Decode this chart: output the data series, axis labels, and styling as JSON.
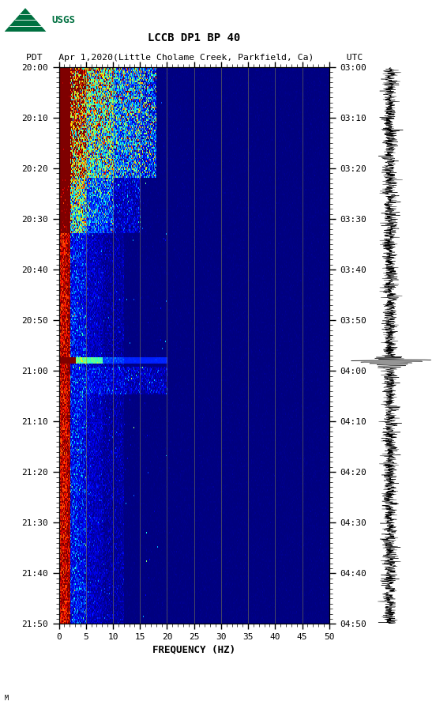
{
  "title_line1": "LCCB DP1 BP 40",
  "title_line2": "PDT   Apr 1,2020(Little Cholame Creek, Parkfield, Ca)      UTC",
  "left_time_labels": [
    "20:00",
    "20:10",
    "20:20",
    "20:30",
    "20:40",
    "20:50",
    "21:00",
    "21:10",
    "21:20",
    "21:30",
    "21:40",
    "21:50"
  ],
  "right_time_labels": [
    "03:00",
    "03:10",
    "03:20",
    "03:30",
    "03:40",
    "03:50",
    "04:00",
    "04:10",
    "04:20",
    "04:30",
    "04:40",
    "04:50"
  ],
  "freq_min": 0,
  "freq_max": 50,
  "freq_ticks": [
    0,
    5,
    10,
    15,
    20,
    25,
    30,
    35,
    40,
    45,
    50
  ],
  "xlabel": "FREQUENCY (HZ)",
  "bg_color": "#000099",
  "spectrogram_cmap": "jet",
  "grid_color": "#888833",
  "logo_color": "#007040",
  "n_time": 360,
  "n_freq": 400,
  "seed": 17
}
